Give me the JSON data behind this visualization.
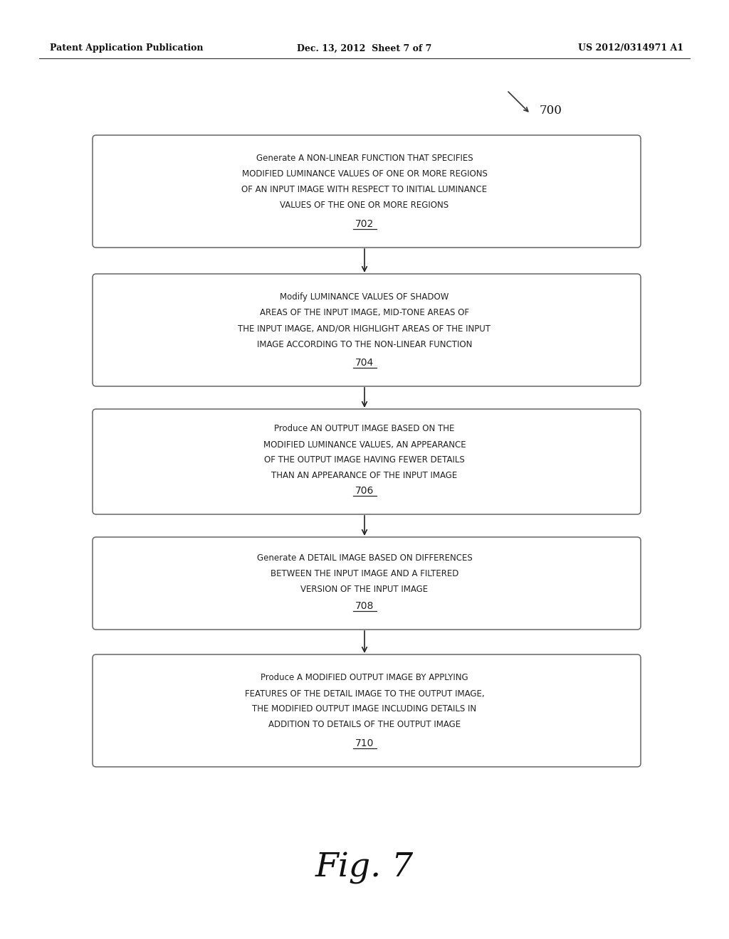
{
  "background_color": "#ffffff",
  "header_left": "Patent Application Publication",
  "header_center": "Dec. 13, 2012  Sheet 7 of 7",
  "header_right": "US 2012/0314971 A1",
  "diagram_label": "700",
  "figure_label": "Fig. 7",
  "boxes": [
    {
      "id": "702",
      "lines": [
        "Generate a non-linear function that specifies",
        "modified luminance values of one or more regions",
        "of an input image with respect to initial luminance",
        "values of the one or more regions"
      ],
      "label": "702"
    },
    {
      "id": "704",
      "lines": [
        "Modify luminance values of shadow",
        "areas of the input image, mid-tone areas of",
        "the input image, and/or highlight areas of the input",
        "image according to the non-linear function"
      ],
      "label": "704"
    },
    {
      "id": "706",
      "lines": [
        "Produce an output image based on the",
        "modified luminance values, an appearance",
        "of the output image having fewer details",
        "than an appearance of the input image"
      ],
      "label": "706"
    },
    {
      "id": "708",
      "lines": [
        "Generate a detail image based on differences",
        "between the input image and a filtered",
        "version of the input image"
      ],
      "label": "708"
    },
    {
      "id": "710",
      "lines": [
        "Produce a modified output image by applying",
        "features of the detail image to the output image,",
        "the modified output image including details in",
        "addition to details of the output image"
      ],
      "label": "710"
    }
  ],
  "text_color": "#222222",
  "box_edge_color": "#666666",
  "arrow_color": "#222222",
  "header_line_color": "#333333"
}
